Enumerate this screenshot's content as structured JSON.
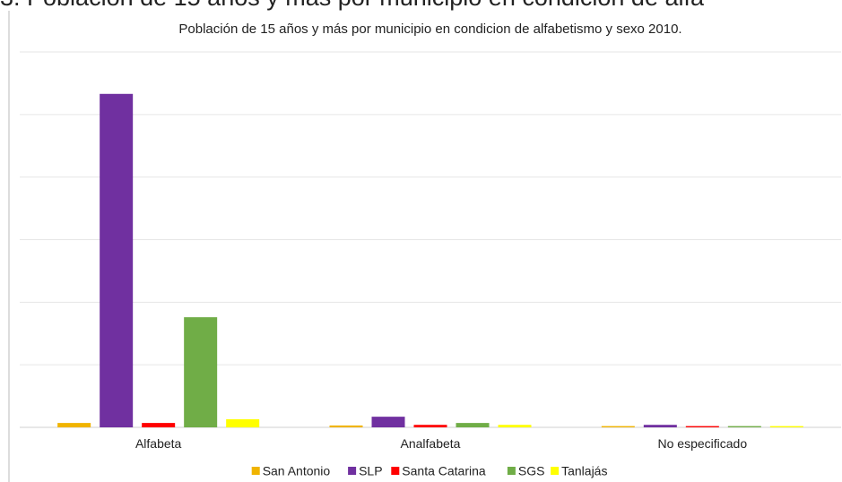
{
  "heading": "3. Población de 15 años y más por municipio en condición de alfa",
  "chart_data": {
    "type": "bar",
    "title": "Población de 15 años y más por municipio en condicion de alfabetismo y sexo 2010.",
    "categories": [
      "Alfabeta",
      "Analfabeta",
      "No especificado"
    ],
    "series": [
      {
        "name": "San Antonio",
        "color": "#f0b400",
        "values": [
          0.07,
          0.03,
          0.02
        ]
      },
      {
        "name": "SLP",
        "color": "#7030a0",
        "values": [
          5.33,
          0.17,
          0.04
        ]
      },
      {
        "name": "Santa Catarina",
        "color": "#ff0000",
        "values": [
          0.07,
          0.04,
          0.02
        ]
      },
      {
        "name": "SGS",
        "color": "#70ad47",
        "values": [
          1.76,
          0.07,
          0.02
        ]
      },
      {
        "name": "Tanlajás",
        "color": "#ffff00",
        "values": [
          0.13,
          0.04,
          0.02
        ]
      }
    ],
    "ylim": [
      0,
      6
    ],
    "yticks": [
      0,
      1,
      2,
      3,
      4,
      5,
      6
    ],
    "grid": true,
    "legend": "bottom"
  }
}
